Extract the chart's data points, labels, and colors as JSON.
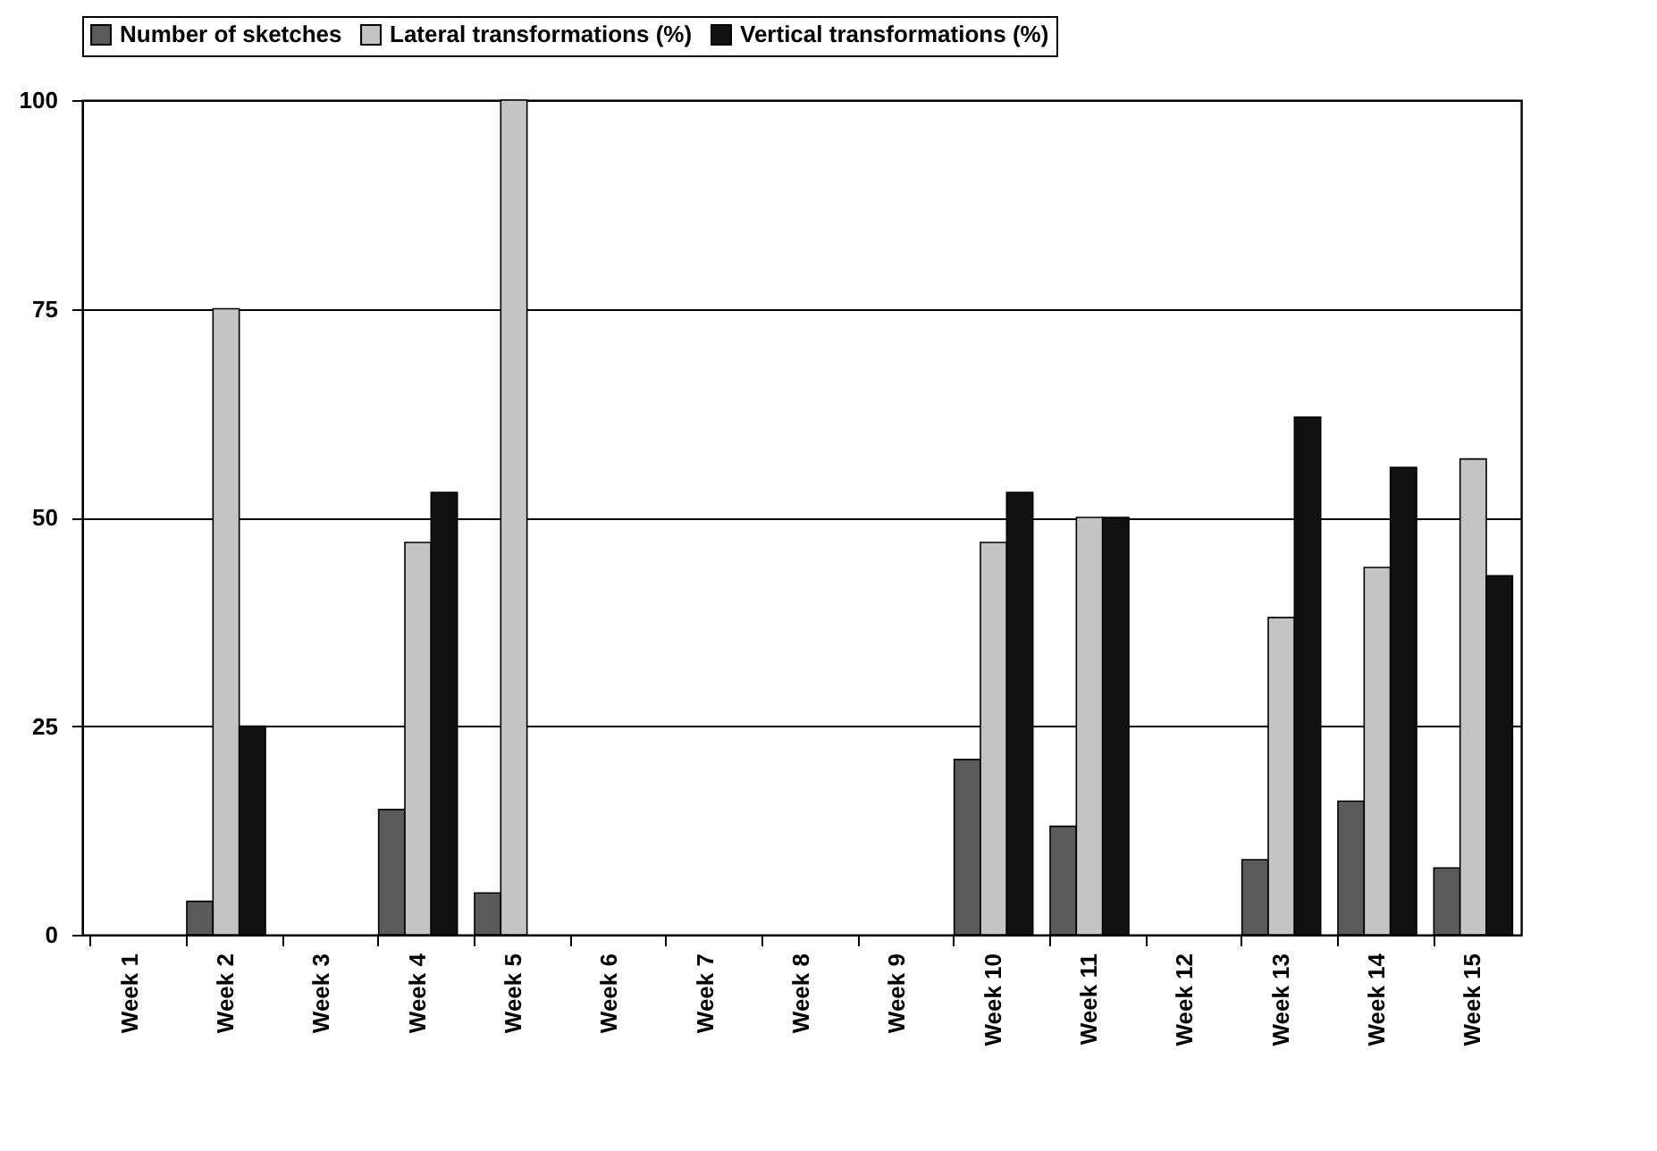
{
  "chart_data": {
    "type": "bar",
    "categories": [
      "Week 1",
      "Week 2",
      "Week 3",
      "Week 4",
      "Week 5",
      "Week 6",
      "Week 7",
      "Week 8",
      "Week 9",
      "Week 10",
      "Week 11",
      "Week 12",
      "Week 13",
      "Week 14",
      "Week 15"
    ],
    "series": [
      {
        "name": "Number of sketches",
        "color": "#5a5a5a",
        "values": [
          null,
          4,
          null,
          15,
          5,
          null,
          null,
          null,
          null,
          21,
          13,
          null,
          9,
          16,
          8
        ]
      },
      {
        "name": "Lateral transformations (%)",
        "color": "#c4c4c4",
        "values": [
          null,
          75,
          null,
          47,
          100,
          null,
          null,
          null,
          null,
          47,
          50,
          null,
          38,
          44,
          57
        ]
      },
      {
        "name": "Vertical transformations (%)",
        "color": "#111111",
        "values": [
          null,
          25,
          null,
          53,
          null,
          null,
          null,
          null,
          null,
          53,
          50,
          null,
          62,
          56,
          43
        ]
      }
    ],
    "ylim": [
      0,
      100
    ],
    "yticks": [
      0,
      25,
      50,
      75,
      100
    ],
    "grid": "y",
    "legend": "top"
  }
}
